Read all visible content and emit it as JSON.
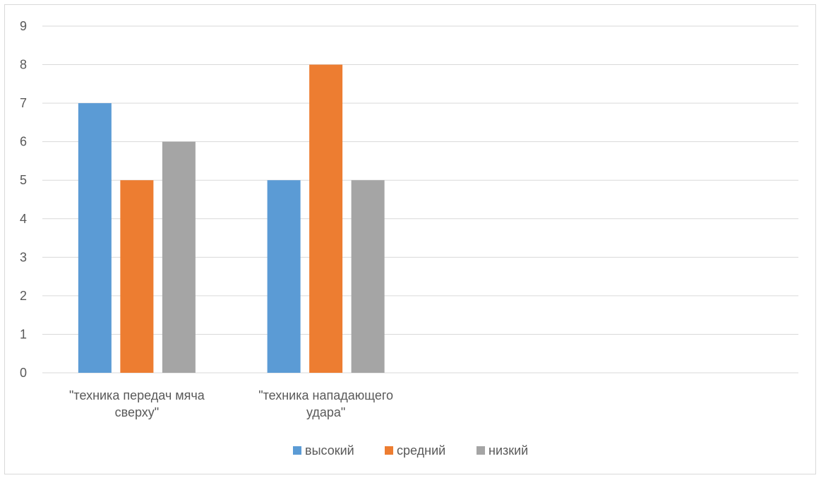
{
  "chart_data": {
    "type": "bar",
    "categories": [
      [
        "\"техника передач мяча",
        "сверху\""
      ],
      [
        "\"техника нападающего",
        "удара\""
      ],
      [
        ""
      ],
      [
        ""
      ]
    ],
    "series": [
      {
        "name": "высокий",
        "color": "#5b9bd5",
        "values": [
          7,
          5,
          null,
          null
        ]
      },
      {
        "name": "средний",
        "color": "#ed7d31",
        "values": [
          5,
          8,
          null,
          null
        ]
      },
      {
        "name": "низкий",
        "color": "#a5a5a5",
        "values": [
          6,
          5,
          null,
          null
        ]
      }
    ],
    "ylim": [
      0,
      9
    ],
    "yticks": [
      0,
      1,
      2,
      3,
      4,
      5,
      6,
      7,
      8,
      9
    ],
    "grid": true,
    "legend": "bottom",
    "title": "",
    "xlabel": "",
    "ylabel": ""
  }
}
